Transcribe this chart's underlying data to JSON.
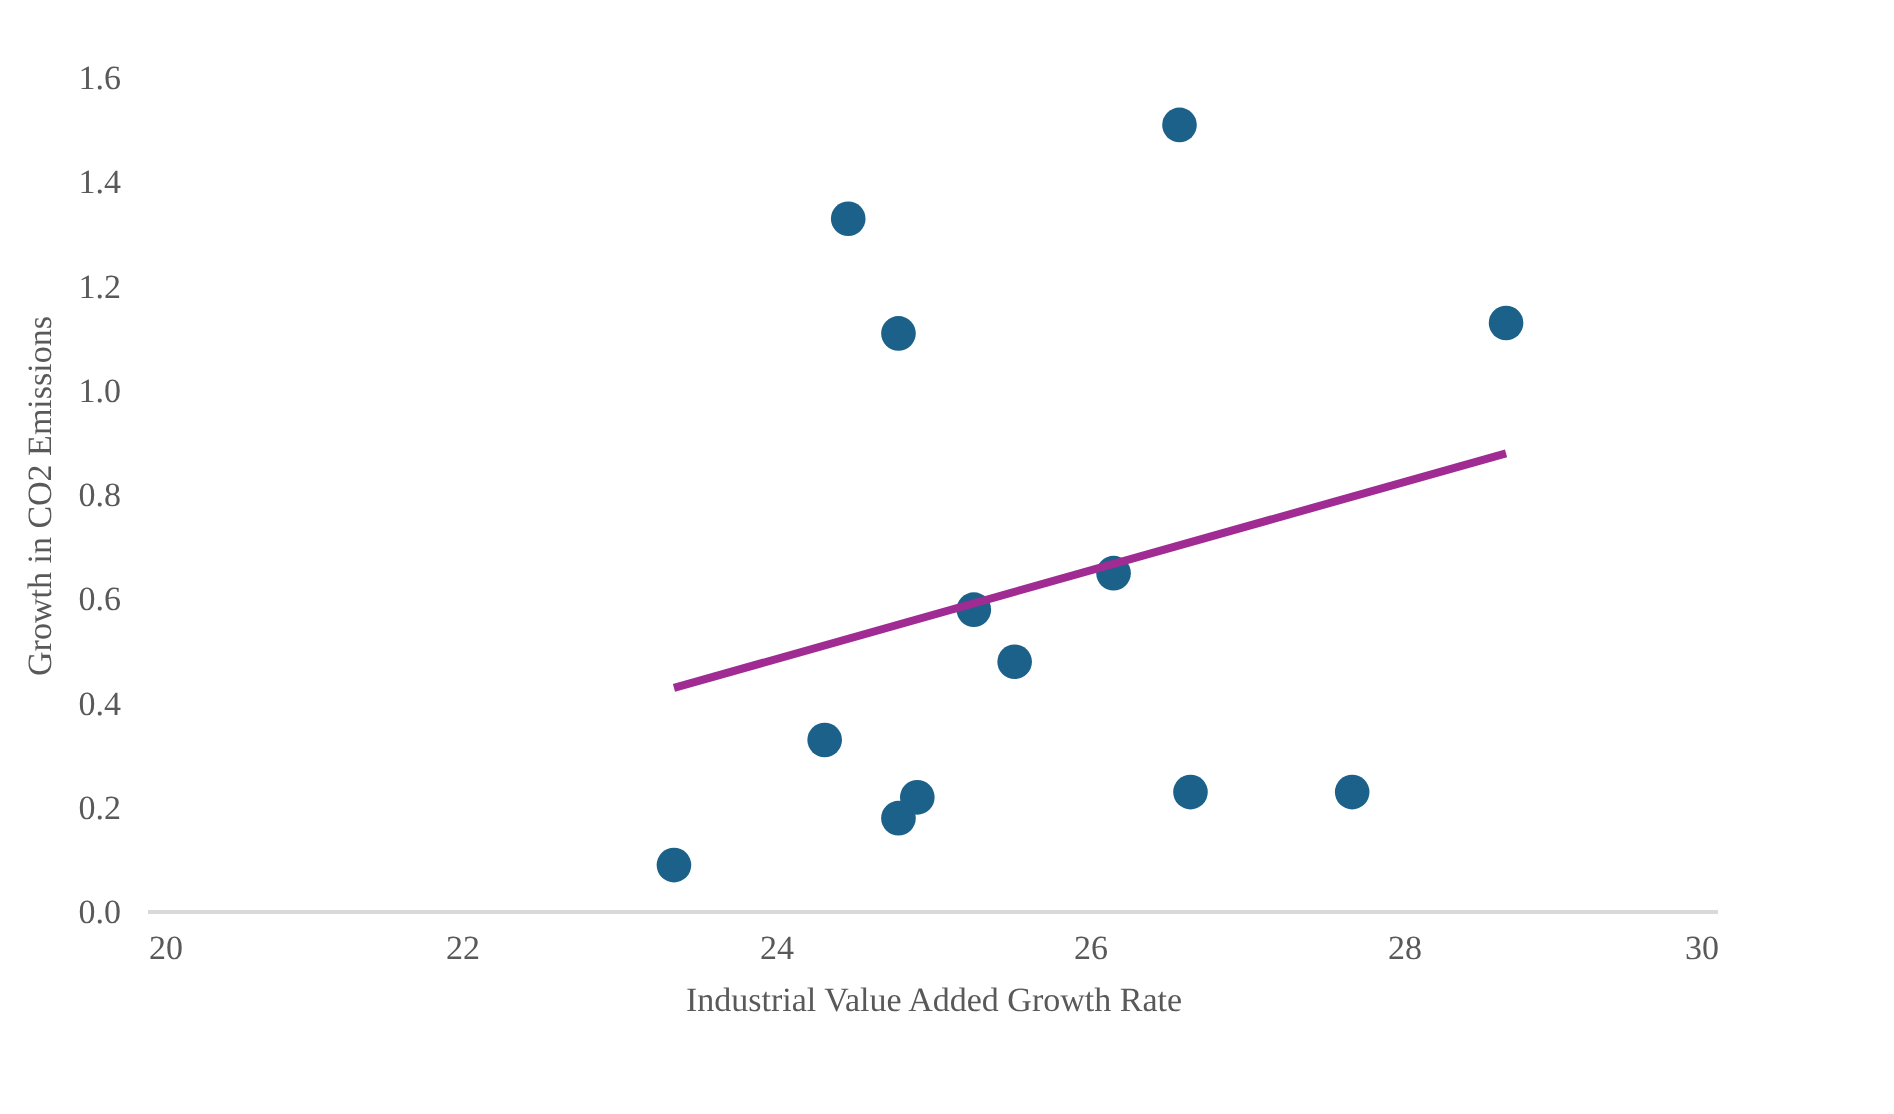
{
  "chart_data": {
    "type": "scatter",
    "xlabel": "Industrial Value Added Growth Rate",
    "ylabel": "Growth in CO2 Emissions",
    "series": [
      {
        "marker": "circle",
        "color": "#1b6189",
        "x": [
          23.35,
          24.31,
          24.46,
          24.78,
          24.78,
          24.9,
          25.26,
          25.52,
          26.15,
          26.57,
          26.64,
          27.67,
          28.65
        ],
        "values": [
          0.09,
          0.33,
          1.33,
          1.11,
          0.18,
          0.22,
          0.58,
          0.48,
          0.65,
          1.51,
          0.23,
          0.23,
          1.13
        ]
      },
      {
        "type": "line",
        "color": "#a02b93",
        "x": [
          23.35,
          28.65
        ],
        "values": [
          0.43,
          0.88
        ]
      }
    ],
    "xlim": [
      20,
      30
    ],
    "xticks": [
      20,
      22,
      24,
      26,
      28,
      30
    ],
    "ylim": [
      0,
      1.6
    ],
    "yticks": [
      {
        "value": 0,
        "label": "0.0"
      },
      0.2,
      0.4,
      0.6,
      0.8,
      {
        "value": 1,
        "label": "1.0"
      },
      1.2,
      1.4,
      1.6
    ],
    "grid": false
  }
}
